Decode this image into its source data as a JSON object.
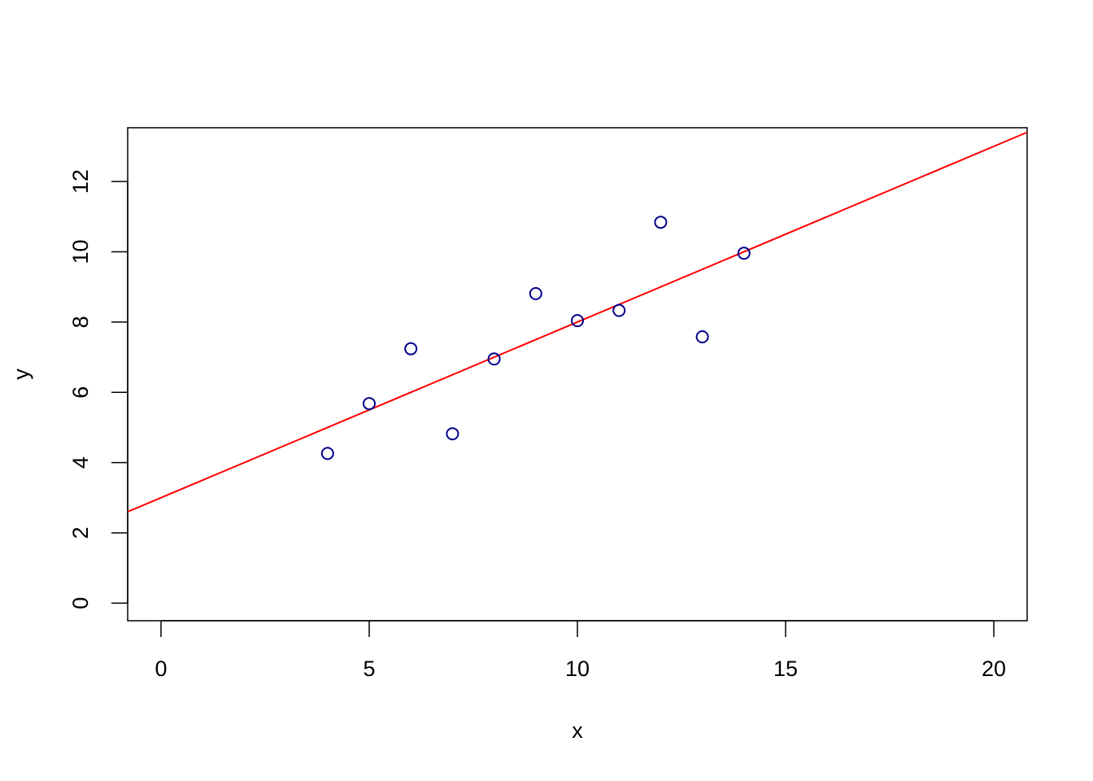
{
  "chart_data": {
    "type": "scatter",
    "x_label": "x",
    "y_label": "y",
    "x": [
      10,
      8,
      13,
      9,
      11,
      14,
      6,
      4,
      12,
      7,
      5
    ],
    "series": [
      {
        "color": "#00008b",
        "values": [
          8.04,
          6.95,
          7.58,
          8.81,
          8.33,
          9.96,
          7.24,
          4.26,
          10.84,
          4.82,
          5.68
        ]
      }
    ],
    "fit": {
      "intercept": 3.0,
      "slope": 0.5,
      "color": "#ff0000"
    },
    "xlim": [
      -0.8,
      20.8
    ],
    "ylim": [
      -0.5,
      13.53
    ],
    "xticks": [
      0,
      5,
      10,
      15,
      20
    ],
    "yticks": [
      0,
      2,
      4,
      6,
      8,
      10,
      12
    ]
  }
}
